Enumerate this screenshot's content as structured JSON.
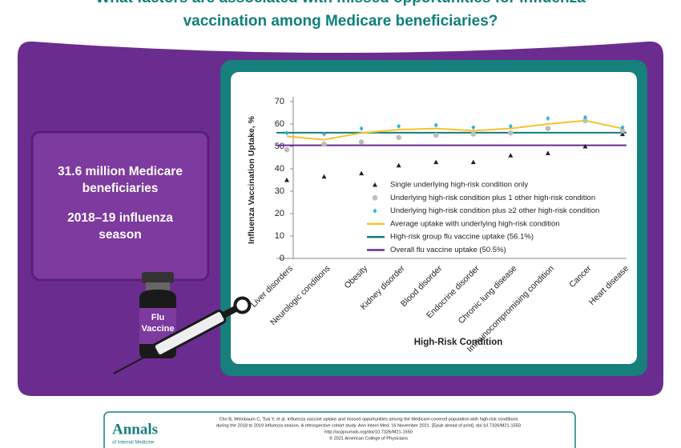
{
  "header": {
    "title_lines": [
      "What factors are associated with missed opportunities for influenza",
      "vaccination among Medicare beneficiaries?"
    ]
  },
  "sidebar": {
    "population_lines": [
      "31.6 million Medicare",
      "beneficiaries"
    ],
    "season_lines": [
      "2018–19 influenza",
      "season"
    ]
  },
  "vial": {
    "label_lines": [
      "Flu",
      "Vaccine"
    ]
  },
  "chart_data": {
    "type": "line",
    "x_label": "High-Risk Condition",
    "y_label": "Influenza Vaccination Uptake, %",
    "categories": [
      "Liver disorders",
      "Neurologic conditions",
      "Obesity",
      "Kidney disorder",
      "Blood disorder",
      "Endocrine disorder",
      "Chronic lung disease",
      "Immunocompromising condition",
      "Cancer",
      "Heart disease"
    ],
    "ylim": [
      0,
      70
    ],
    "yticks": [
      0,
      10,
      20,
      30,
      40,
      50,
      60,
      70
    ],
    "series": [
      {
        "name": "Single underlying high-risk condition only",
        "color": "#231f20",
        "marker": "triangle",
        "values": [
          35,
          36.5,
          38,
          41.5,
          43,
          43,
          46,
          47,
          50,
          55.5
        ]
      },
      {
        "name": "Underlying high-risk condition plus 1 other high-risk condition",
        "color": "#bdbdbd",
        "marker": "circle",
        "values": [
          48.5,
          51,
          52,
          54,
          55,
          55.5,
          56,
          58,
          61.5,
          57
        ]
      },
      {
        "name": "Underlying high-risk condition plus ≥2 other high-risk condition",
        "color": "#27b5d9",
        "marker": "diamond",
        "values": [
          56,
          55.5,
          58,
          59,
          59.5,
          58.5,
          59,
          62.5,
          63,
          58.5
        ]
      },
      {
        "name": "Average uptake with underlying high-risk condition",
        "color": "#f6c22b",
        "marker": "line",
        "values": [
          54.5,
          53,
          56,
          57.5,
          58,
          57,
          58,
          60,
          61.5,
          58
        ]
      }
    ],
    "reference_lines": [
      {
        "name": "High-risk group flu vaccine uptake (56.1%)",
        "color": "#157b7a",
        "value": 56.1
      },
      {
        "name": "Overall flu vaccine uptake (50.5%)",
        "color": "#6b2c8f",
        "value": 50.5
      }
    ]
  },
  "footer": {
    "journal": "Annals",
    "journal_sub": "of Internal Medicine",
    "citation_lines": [
      "Cho B, Weinbaum C, Tsai Y, et al. Influenza vaccine uptake and missed opportunities among the Medicare-covered population with high-risk conditions",
      "during the 2018 to 2019 influenza season. A retrospective cohort study. Ann Intern Med. 16 November 2021. [Epub ahead of print]. doi:10.7326/M21-1550",
      "http://acpjournals.org/doi/10.7326/M21-1550",
      "© 2021 American College of Physicians"
    ]
  }
}
